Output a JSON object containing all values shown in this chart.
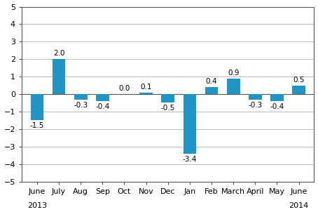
{
  "categories": [
    "June",
    "July",
    "Aug",
    "Sep",
    "Oct",
    "Nov",
    "Dec",
    "Jan",
    "Feb",
    "March",
    "April",
    "May",
    "June"
  ],
  "values": [
    -1.5,
    2.0,
    -0.3,
    -0.4,
    0.0,
    0.1,
    -0.5,
    -3.4,
    0.4,
    0.9,
    -0.3,
    -0.4,
    0.5
  ],
  "bar_color": "#2196c4",
  "ylim": [
    -5,
    5
  ],
  "yticks": [
    -5,
    -4,
    -3,
    -2,
    -1,
    0,
    1,
    2,
    3,
    4,
    5
  ],
  "value_fontsize": 7.5,
  "tick_fontsize": 8,
  "year_fontsize": 8,
  "background_color": "#ffffff",
  "grid_color": "#bbbbbb",
  "spine_color": "#555555",
  "bar_width": 0.6
}
